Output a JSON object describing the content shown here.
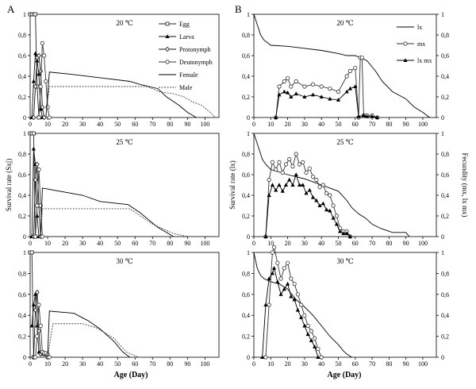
{
  "panel_labels": [
    "A",
    "B"
  ],
  "x_label": "Age (Day)",
  "x_ticks": [
    0,
    10,
    20,
    30,
    40,
    50,
    60,
    70,
    80,
    90,
    100
  ],
  "y_ticks": [
    "0",
    "0,2",
    "0,4",
    "0,6",
    "0,8",
    "1"
  ],
  "legend_A": [
    "Egg",
    "Larva",
    "Protonymph",
    "Deutonymph",
    "Female",
    "Male"
  ],
  "legend_B": [
    "lx",
    "mx",
    "lx mx"
  ],
  "chart_data": [
    {
      "type": "line",
      "panel": "A",
      "title": "20 ℃",
      "ylabel": "",
      "xlim": [
        0,
        108
      ],
      "ylim": [
        0,
        1
      ],
      "series": [
        {
          "name": "Egg",
          "x": [
            0,
            1,
            2,
            3,
            4,
            5
          ],
          "y": [
            1,
            1,
            1,
            1,
            0.3,
            0
          ]
        },
        {
          "name": "Larva",
          "x": [
            1,
            2,
            3,
            4,
            5,
            6,
            7
          ],
          "y": [
            0,
            0.35,
            0.62,
            0.55,
            0.42,
            0.08,
            0
          ]
        },
        {
          "name": "Protonymph",
          "x": [
            2,
            3,
            4,
            5,
            6,
            7,
            8
          ],
          "y": [
            0,
            0.3,
            0.58,
            0.6,
            0.45,
            0.1,
            0
          ]
        },
        {
          "name": "Deutonymph",
          "x": [
            5,
            6,
            7,
            8,
            9,
            10,
            11
          ],
          "y": [
            0,
            0.3,
            0.72,
            0.6,
            0.35,
            0.1,
            0
          ]
        },
        {
          "name": "Female",
          "x": [
            9,
            11,
            23,
            57,
            63,
            73,
            78,
            85,
            90,
            95
          ],
          "y": [
            0,
            0.44,
            0.42,
            0.35,
            0.32,
            0.28,
            0.2,
            0.12,
            0.05,
            0
          ]
        },
        {
          "name": "Male",
          "x": [
            9,
            11,
            67,
            74,
            82,
            88,
            93,
            98,
            103,
            106
          ],
          "y": [
            0,
            0.3,
            0.3,
            0.25,
            0.23,
            0.2,
            0.15,
            0.12,
            0.05,
            0
          ]
        }
      ]
    },
    {
      "type": "line",
      "panel": "A",
      "title": "25 ℃",
      "ylabel": "Survival rate (Sxj)",
      "xlim": [
        0,
        108
      ],
      "ylim": [
        0,
        1
      ],
      "series": [
        {
          "name": "Egg",
          "x": [
            0,
            1,
            2,
            3
          ],
          "y": [
            1,
            1,
            1,
            0
          ]
        },
        {
          "name": "Larva",
          "x": [
            1,
            2,
            3,
            4,
            5
          ],
          "y": [
            0,
            0.85,
            0.7,
            0.2,
            0
          ]
        },
        {
          "name": "Protonymph",
          "x": [
            2,
            3,
            4,
            5,
            6
          ],
          "y": [
            0,
            0.55,
            0.7,
            0.3,
            0
          ]
        },
        {
          "name": "Deutonymph",
          "x": [
            3,
            4,
            5,
            6,
            7
          ],
          "y": [
            0,
            0.3,
            0.65,
            0.3,
            0
          ]
        },
        {
          "name": "Female",
          "x": [
            6,
            7,
            30,
            40,
            56,
            63,
            73,
            82
          ],
          "y": [
            0,
            0.47,
            0.4,
            0.34,
            0.31,
            0.23,
            0.09,
            0
          ]
        },
        {
          "name": "Male",
          "x": [
            6,
            7,
            57,
            70,
            82,
            90
          ],
          "y": [
            0,
            0.27,
            0.27,
            0.12,
            0.03,
            0
          ]
        }
      ]
    },
    {
      "type": "line",
      "panel": "A",
      "title": "30 ℃",
      "ylabel": "",
      "xlim": [
        0,
        108
      ],
      "ylim": [
        0,
        1
      ],
      "series": [
        {
          "name": "Egg",
          "x": [
            0,
            1,
            2
          ],
          "y": [
            1,
            1,
            0
          ]
        },
        {
          "name": "Larva",
          "x": [
            1,
            2,
            3,
            4,
            5,
            6,
            7,
            8,
            9,
            10
          ],
          "y": [
            0.3,
            0.5,
            0.6,
            0.3,
            0.05,
            0.04,
            0.03,
            0.03,
            0.03,
            0
          ]
        },
        {
          "name": "Protonymph",
          "x": [
            2,
            3,
            4,
            5,
            6,
            7,
            8,
            9,
            10
          ],
          "y": [
            0,
            0.45,
            0.62,
            0.25,
            0.03,
            0.04,
            0.03,
            0.03,
            0
          ]
        },
        {
          "name": "Deutonymph",
          "x": [
            3,
            4,
            5,
            6,
            7,
            8,
            9,
            10,
            11
          ],
          "y": [
            0,
            0.2,
            0.5,
            0.3,
            0.05,
            0.04,
            0.04,
            0.03,
            0
          ]
        },
        {
          "name": "Female",
          "x": [
            10,
            11,
            25,
            33,
            40,
            48,
            53,
            57
          ],
          "y": [
            0,
            0.44,
            0.42,
            0.35,
            0.27,
            0.15,
            0.05,
            0
          ]
        },
        {
          "name": "Male",
          "x": [
            10,
            13,
            30,
            38,
            48,
            55,
            62
          ],
          "y": [
            0,
            0.32,
            0.32,
            0.28,
            0.18,
            0.05,
            0
          ]
        }
      ]
    },
    {
      "type": "line",
      "panel": "B",
      "title": "20 ℃",
      "ylabel": "",
      "y2label": "",
      "xlim": [
        0,
        108
      ],
      "ylim": [
        0,
        1
      ],
      "y2lim": [
        0,
        1
      ],
      "series": [
        {
          "name": "lx",
          "axis": "left",
          "x": [
            0,
            2,
            4,
            6,
            10,
            20,
            30,
            40,
            50,
            55,
            60,
            67,
            72,
            76,
            82,
            90,
            95,
            100,
            104
          ],
          "y": [
            1,
            0.9,
            0.8,
            0.75,
            0.7,
            0.69,
            0.67,
            0.65,
            0.62,
            0.6,
            0.6,
            0.55,
            0.45,
            0.35,
            0.25,
            0.18,
            0.1,
            0.05,
            0
          ]
        },
        {
          "name": "mx",
          "axis": "right",
          "x": [
            13,
            15,
            18,
            20,
            22,
            25,
            30,
            35,
            40,
            45,
            50,
            55,
            57,
            60,
            62,
            63,
            64,
            65,
            67,
            70,
            73
          ],
          "y": [
            0,
            0.3,
            0.35,
            0.38,
            0.3,
            0.35,
            0.3,
            0.32,
            0.3,
            0.28,
            0.25,
            0.4,
            0.45,
            0.48,
            0,
            0.58,
            0.58,
            0.02,
            0.02,
            0.02,
            0
          ]
        },
        {
          "name": "lx mx",
          "axis": "right",
          "x": [
            13,
            15,
            18,
            20,
            22,
            25,
            30,
            35,
            40,
            45,
            50,
            55,
            57,
            60,
            62,
            65,
            67,
            70,
            73
          ],
          "y": [
            0,
            0.22,
            0.25,
            0.24,
            0.2,
            0.23,
            0.2,
            0.22,
            0.2,
            0.18,
            0.17,
            0.25,
            0.28,
            0.3,
            0.01,
            0.02,
            0.01,
            0.01,
            0
          ]
        }
      ]
    },
    {
      "type": "line",
      "panel": "B",
      "title": "25 ℃",
      "ylabel": "Survival rate (lx)",
      "y2label": "Fecundity (mx, lx mx)",
      "xlim": [
        0,
        108
      ],
      "ylim": [
        0,
        1
      ],
      "y2lim": [
        0,
        1
      ],
      "series": [
        {
          "name": "lx",
          "axis": "left",
          "x": [
            0,
            3,
            5,
            7,
            10,
            20,
            30,
            35,
            40,
            45,
            50,
            55,
            58,
            62,
            66,
            70,
            75,
            82,
            90,
            92
          ],
          "y": [
            1,
            0.85,
            0.75,
            0.7,
            0.65,
            0.6,
            0.56,
            0.53,
            0.5,
            0.47,
            0.44,
            0.35,
            0.28,
            0.22,
            0.18,
            0.12,
            0.08,
            0.04,
            0.04,
            0
          ]
        },
        {
          "name": "mx",
          "axis": "right",
          "x": [
            7,
            9,
            11,
            13,
            15,
            17,
            19,
            21,
            23,
            25,
            27,
            29,
            31,
            33,
            35,
            37,
            39,
            41,
            43,
            45,
            47,
            49,
            51,
            53,
            55,
            57
          ],
          "y": [
            0,
            0.55,
            0.72,
            0.65,
            0.72,
            0.62,
            0.7,
            0.75,
            0.68,
            0.8,
            0.7,
            0.72,
            0.62,
            0.66,
            0.58,
            0.55,
            0.48,
            0.5,
            0.42,
            0.4,
            0.3,
            0.2,
            0.08,
            0.05,
            0.05,
            0
          ]
        },
        {
          "name": "lx mx",
          "axis": "right",
          "x": [
            7,
            9,
            11,
            13,
            15,
            17,
            19,
            21,
            23,
            25,
            27,
            29,
            31,
            33,
            35,
            37,
            39,
            41,
            43,
            45,
            47,
            49,
            51,
            53,
            55,
            57
          ],
          "y": [
            0,
            0.4,
            0.5,
            0.45,
            0.5,
            0.44,
            0.5,
            0.55,
            0.5,
            0.6,
            0.5,
            0.5,
            0.42,
            0.45,
            0.38,
            0.35,
            0.3,
            0.32,
            0.26,
            0.25,
            0.18,
            0.12,
            0.05,
            0.03,
            0.03,
            0
          ]
        }
      ]
    },
    {
      "type": "line",
      "panel": "B",
      "title": "30 ℃",
      "ylabel": "",
      "y2label": "",
      "xlim": [
        0,
        108
      ],
      "ylim": [
        0,
        1
      ],
      "y2lim": [
        0,
        1
      ],
      "series": [
        {
          "name": "lx",
          "axis": "left",
          "x": [
            0,
            2,
            4,
            6,
            10,
            15,
            20,
            25,
            30,
            35,
            40,
            45,
            50,
            53,
            55,
            58
          ],
          "y": [
            1,
            0.85,
            0.78,
            0.75,
            0.72,
            0.7,
            0.65,
            0.55,
            0.48,
            0.4,
            0.3,
            0.2,
            0.12,
            0.06,
            0.03,
            0
          ]
        },
        {
          "name": "mx",
          "axis": "right",
          "x": [
            7,
            9,
            11,
            12,
            14,
            16,
            18,
            20,
            22,
            24,
            26,
            28,
            30,
            32,
            34,
            36,
            38,
            40
          ],
          "y": [
            0,
            0.5,
            1.0,
            1.05,
            0.9,
            0.75,
            0.85,
            0.9,
            0.75,
            0.7,
            0.6,
            0.5,
            0.4,
            0.3,
            0.25,
            0.18,
            0.08,
            0
          ]
        },
        {
          "name": "lx mx",
          "axis": "right",
          "x": [
            5,
            7,
            9,
            11,
            12,
            14,
            16,
            18,
            20,
            22,
            24,
            26,
            28,
            30,
            32,
            34,
            36,
            38
          ],
          "y": [
            0,
            0.5,
            0.75,
            0.8,
            0.85,
            0.72,
            0.6,
            0.65,
            0.7,
            0.58,
            0.55,
            0.45,
            0.38,
            0.3,
            0.22,
            0.16,
            0.1,
            0
          ]
        }
      ]
    }
  ]
}
